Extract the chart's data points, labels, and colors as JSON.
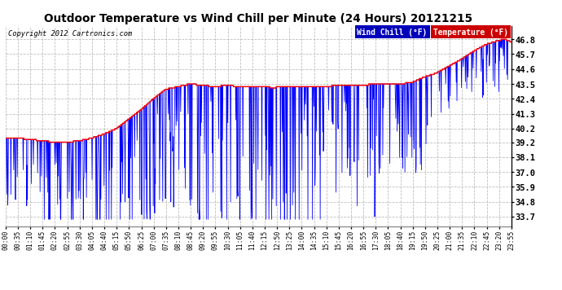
{
  "title": "Outdoor Temperature vs Wind Chill per Minute (24 Hours) 20121215",
  "copyright_text": "Copyright 2012 Cartronics.com",
  "legend_wind_chill": "Wind Chill (°F)",
  "legend_temperature": "Temperature (°F)",
  "ylabel_right_ticks": [
    33.7,
    34.8,
    35.9,
    37.0,
    38.1,
    39.2,
    40.2,
    41.3,
    42.4,
    43.5,
    44.6,
    45.7,
    46.8
  ],
  "ylim": [
    33.0,
    47.8
  ],
  "background_color": "#ffffff",
  "plot_bg_color": "#ffffff",
  "grid_color": "#bbbbbb",
  "wind_chill_color": "#0000ff",
  "temperature_color": "#ff0000",
  "legend_wc_bg": "#0000cc",
  "legend_temp_bg": "#cc0000",
  "x_tick_labels": [
    "00:00",
    "00:35",
    "01:10",
    "01:45",
    "02:20",
    "02:55",
    "03:30",
    "04:05",
    "04:40",
    "05:15",
    "05:50",
    "06:25",
    "07:00",
    "07:35",
    "08:10",
    "08:45",
    "09:20",
    "09:55",
    "10:30",
    "11:05",
    "11:40",
    "12:15",
    "12:50",
    "13:25",
    "14:00",
    "14:35",
    "15:10",
    "15:45",
    "16:20",
    "16:55",
    "17:30",
    "18:05",
    "18:40",
    "19:15",
    "19:50",
    "20:25",
    "21:00",
    "21:35",
    "22:10",
    "22:45",
    "23:20",
    "23:55"
  ],
  "num_minutes": 1440
}
